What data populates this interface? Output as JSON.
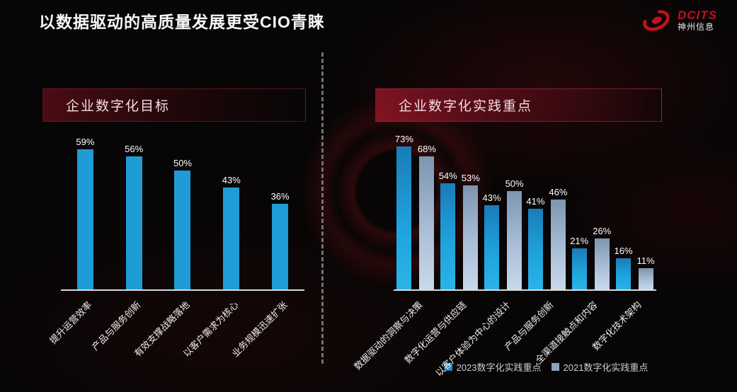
{
  "page": {
    "title": "以数据驱动的高质量发展更受CIO青睐"
  },
  "logo": {
    "brand": "DCITS",
    "company": "神州信息"
  },
  "panels": {
    "left": {
      "header": "企业数字化目标"
    },
    "right": {
      "header": "企业数字化实践重点"
    }
  },
  "colors": {
    "background": "#070505",
    "accent_red": "#9b162a",
    "banner_text": "#f4dbe0",
    "bar_blue_flat": "#1f9cd6",
    "bar_blue_2023_top": "#1a7cb8",
    "bar_blue_2023_bottom": "#29b4e8",
    "bar_gray_2021_top": "#7e95b0",
    "bar_gray_2021_bottom": "#c9d8ea",
    "baseline": "#d9d9d9",
    "logo_red": "#c3101c"
  },
  "chart_data": [
    {
      "type": "bar",
      "title": "企业数字化目标",
      "categories": [
        "提升运营效率",
        "产品与服务创新",
        "有效支撑战略落地",
        "以客户需求为核心",
        "业务规模迅速扩张"
      ],
      "values": [
        59,
        56,
        50,
        43,
        36
      ],
      "unit": "%",
      "xlabel": "",
      "ylabel": "",
      "ylim": [
        0,
        70
      ],
      "grid": false,
      "data_labels": true,
      "legend_position": "none"
    },
    {
      "type": "bar",
      "title": "企业数字化实践重点",
      "categories": [
        "数据驱动的洞察与决策",
        "数字化运营与供应链",
        "以客户体验为中心的设计",
        "产品与服务创新",
        "全渠道接触点和内容",
        "数字化技术架构"
      ],
      "series": [
        {
          "name": "2023数字化实践重点",
          "values": [
            73,
            54,
            43,
            41,
            21,
            16
          ],
          "color": "#1f9cd6"
        },
        {
          "name": "2021数字化实践重点",
          "values": [
            68,
            53,
            50,
            46,
            26,
            11
          ],
          "color": "#a9bed6"
        }
      ],
      "unit": "%",
      "xlabel": "",
      "ylabel": "",
      "ylim": [
        0,
        85
      ],
      "grid": false,
      "data_labels": true,
      "legend_position": "bottom"
    }
  ]
}
